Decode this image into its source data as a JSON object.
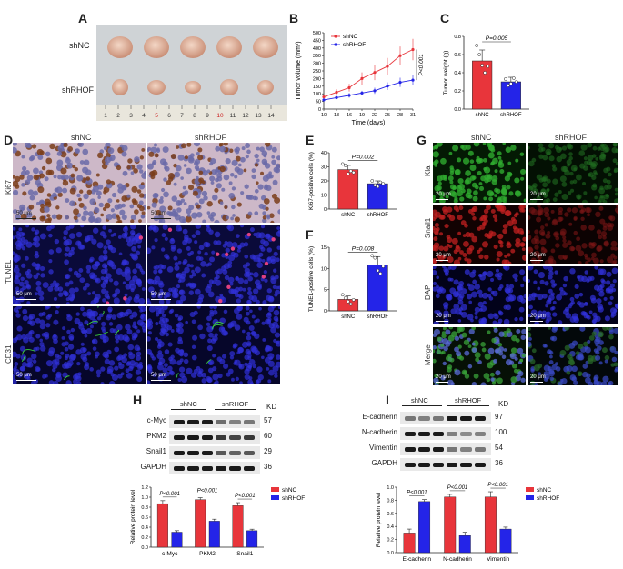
{
  "letters": {
    "A": "A",
    "B": "B",
    "C": "C",
    "D": "D",
    "E": "E",
    "F": "F",
    "G": "G",
    "H": "H",
    "I": "I"
  },
  "groups": {
    "nc": "shNC",
    "rhof": "shRHOF"
  },
  "colors": {
    "nc": "#e8353b",
    "rhof": "#2424e8"
  },
  "panelA": {
    "ruler_ticks": [
      "1",
      "2",
      "3",
      "4",
      "5",
      "6",
      "7",
      "8",
      "9",
      "10",
      "11",
      "12",
      "13",
      "14"
    ]
  },
  "panelB": {
    "ylabel": "Tumor volume (mm³)",
    "xlabel": "Time (days)",
    "pval": "P<0.001"
  },
  "panelC": {
    "ylabel": "Tumor weight (g)",
    "pval": "P=0.005"
  },
  "panelD": {
    "rows": [
      "Ki67",
      "TUNEL",
      "CD31"
    ],
    "scale": "50 μm"
  },
  "panelE": {
    "ylabel": "Ki67-positive cells (%)",
    "pval": "P=0.002"
  },
  "panelF": {
    "ylabel": "TUNEL-positive cells (%)",
    "pval": "P=0.008"
  },
  "panelG": {
    "rows": [
      "Kla",
      "Snail1",
      "DAPI",
      "Merge"
    ],
    "scale": "20 μm"
  },
  "panelH": {
    "kd_header": "KD",
    "proteins": [
      "c-Myc",
      "PKM2",
      "Snail1",
      "GAPDH"
    ],
    "kd": [
      "57",
      "60",
      "29",
      "36"
    ],
    "ylabel": "Relative protein level"
  },
  "panelI": {
    "kd_header": "KD",
    "proteins": [
      "E-cadherin",
      "N-cadherin",
      "Vimentin",
      "GAPDH"
    ],
    "kd": [
      "97",
      "100",
      "54",
      "36"
    ],
    "ylabel": "Relative protein level"
  },
  "chart_data": [
    {
      "id": "B",
      "type": "line",
      "ylabel": "Tumor volume (mm³)",
      "xlabel": "Time (days)",
      "x": [
        10,
        13,
        16,
        19,
        22,
        25,
        28,
        31
      ],
      "xlim": [
        10,
        31
      ],
      "ylim": [
        0,
        500
      ],
      "yticks": [
        0,
        50,
        100,
        150,
        200,
        250,
        300,
        350,
        400,
        450,
        500
      ],
      "series": [
        {
          "name": "shNC",
          "values": [
            80,
            110,
            140,
            200,
            240,
            280,
            350,
            390
          ],
          "err": [
            10,
            20,
            25,
            40,
            50,
            55,
            60,
            70
          ]
        },
        {
          "name": "shRHOF",
          "values": [
            60,
            75,
            90,
            105,
            120,
            150,
            175,
            190
          ],
          "err": [
            10,
            10,
            15,
            15,
            20,
            25,
            30,
            35
          ]
        }
      ],
      "annotation": "P<0.001"
    },
    {
      "id": "C",
      "type": "bar",
      "ylabel": "Tumor weight (g)",
      "categories": [
        "shNC",
        "shRHOF"
      ],
      "values": [
        0.53,
        0.3
      ],
      "err": [
        0.12,
        0.05
      ],
      "ylim": [
        0,
        0.8
      ],
      "yticks": [
        0.0,
        0.2,
        0.4,
        0.6,
        0.8
      ],
      "yticklabels": [
        "0.0",
        "0.2",
        "0.4",
        "0.6",
        "0.8"
      ],
      "points": [
        [
          0.7,
          0.6,
          0.48,
          0.4,
          0.47
        ],
        [
          0.33,
          0.26,
          0.28,
          0.34,
          0.3
        ]
      ],
      "annotation": "P=0.005"
    },
    {
      "id": "E",
      "type": "bar",
      "ylabel": "Ki67-positive cells (%)",
      "categories": [
        "shNC",
        "shRHOF"
      ],
      "values": [
        28,
        18
      ],
      "err": [
        3,
        2
      ],
      "ylim": [
        0,
        40
      ],
      "yticks": [
        0,
        10,
        20,
        30,
        40
      ],
      "yticklabels": [
        "0",
        "10",
        "20",
        "30",
        "40"
      ],
      "points": [
        [
          32,
          31,
          25,
          27,
          26
        ],
        [
          20,
          17,
          16,
          19,
          18
        ]
      ],
      "annotation": "P=0.002"
    },
    {
      "id": "F",
      "type": "bar",
      "ylabel": "TUNEL-positive cells (%)",
      "categories": [
        "shNC",
        "shRHOF"
      ],
      "values": [
        2.7,
        10.8
      ],
      "err": [
        0.8,
        2.0
      ],
      "ylim": [
        0,
        15
      ],
      "yticks": [
        0,
        5,
        10,
        15
      ],
      "yticklabels": [
        "0",
        "5",
        "10",
        "15"
      ],
      "points": [
        [
          3.8,
          3.0,
          2.2,
          1.6,
          2.6
        ],
        [
          13.0,
          12.5,
          9.5,
          8.8,
          10.5
        ]
      ],
      "annotation": "P=0.008"
    },
    {
      "id": "H",
      "type": "bar",
      "ylabel": "Relative protein level",
      "categories": [
        "c-Myc",
        "PKM2",
        "Snail1"
      ],
      "series": [
        {
          "name": "shNC",
          "values": [
            0.87,
            0.95,
            0.83
          ],
          "err": [
            0.06,
            0.04,
            0.06
          ]
        },
        {
          "name": "shRHOF",
          "values": [
            0.3,
            0.52,
            0.33
          ],
          "err": [
            0.03,
            0.04,
            0.03
          ]
        }
      ],
      "ylim": [
        0,
        1.2
      ],
      "yticks": [
        0.0,
        0.2,
        0.4,
        0.6,
        0.8,
        1.0,
        1.2
      ],
      "yticklabels": [
        "0.0",
        "0.2",
        "0.4",
        "0.6",
        "0.8",
        "1.0",
        "1.2"
      ],
      "annotations": [
        "P<0.001",
        "P<0.001",
        "P<0.001"
      ]
    },
    {
      "id": "I",
      "type": "bar",
      "ylabel": "Relative protein level",
      "categories": [
        "E-cadherin",
        "N-cadherin",
        "Vimentin"
      ],
      "series": [
        {
          "name": "shNC",
          "values": [
            0.3,
            0.85,
            0.85
          ],
          "err": [
            0.06,
            0.04,
            0.08
          ]
        },
        {
          "name": "shRHOF",
          "values": [
            0.78,
            0.26,
            0.36
          ],
          "err": [
            0.03,
            0.05,
            0.03
          ]
        }
      ],
      "ylim": [
        0,
        1.0
      ],
      "yticks": [
        0.0,
        0.2,
        0.4,
        0.6,
        0.8,
        1.0
      ],
      "yticklabels": [
        "0.0",
        "0.2",
        "0.4",
        "0.6",
        "0.8",
        "1.0"
      ],
      "annotations": [
        "P<0.001",
        "P<0.001",
        "P<0.001"
      ]
    }
  ]
}
